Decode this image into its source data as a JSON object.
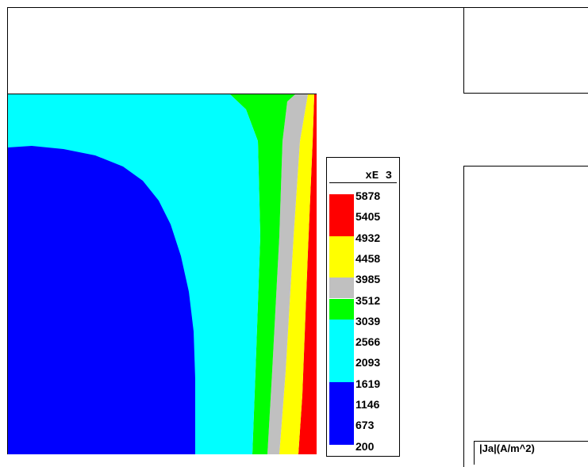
{
  "colors": {
    "red": "#ff0000",
    "yellow": "#ffff00",
    "gray": "#c0c0c0",
    "green": "#00ff00",
    "cyan": "#00ffff",
    "blue": "#0000ff",
    "frame": "#000000",
    "background": "#ffffff"
  },
  "legend": {
    "multiplier": "xE  3",
    "levels": [
      "5878",
      "5405",
      "4932",
      "4458",
      "3985",
      "3512",
      "3039",
      "2566",
      "2093",
      "1619",
      "1146",
      "673",
      "200"
    ],
    "bands": [
      {
        "color": "red",
        "upper_level": "5878",
        "lower_level": "4932"
      },
      {
        "color": "yellow",
        "upper_level": "4932",
        "lower_level": "3985"
      },
      {
        "color": "gray",
        "upper_level": "3985",
        "lower_level": "3512"
      },
      {
        "color": "green",
        "upper_level": "3512",
        "lower_level": "3039"
      },
      {
        "color": "cyan",
        "upper_level": "3039",
        "lower_level": "1619"
      },
      {
        "color": "blue",
        "upper_level": "1619",
        "lower_level": "200"
      }
    ]
  },
  "quantity_label": "|Ja|(A/m^2)"
}
